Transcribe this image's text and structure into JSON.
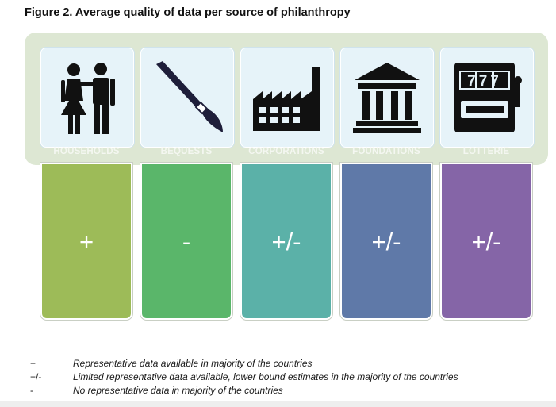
{
  "title": "Figure 2. Average quality of data per source of philanthropy",
  "colors": {
    "band": "#dde7d3",
    "card": "#e6f3f9",
    "households": "#9dbb58",
    "bequests": "#5ab66a",
    "corporations": "#5bb1a8",
    "foundations": "#5f79a8",
    "lotteries": "#8565a7"
  },
  "sources": [
    {
      "label": "HOUSEHOLDS",
      "symbol": "+",
      "icon": "couple-icon"
    },
    {
      "label": "BEQUESTS",
      "symbol": "-",
      "icon": "pen-icon"
    },
    {
      "label": "CORPORATIONS",
      "symbol": "+/-",
      "icon": "factory-icon"
    },
    {
      "label": "FOUNDATIONS",
      "symbol": "+/-",
      "icon": "bank-building-icon"
    },
    {
      "label": "LOTTERIE",
      "symbol": "+/-",
      "icon": "slot-machine-icon"
    }
  ],
  "slot_digits": "777",
  "legend": [
    {
      "symbol": "+",
      "text": "Representative data available in majority of the countries"
    },
    {
      "symbol": "+/-",
      "text": "Limited representative data available, lower bound estimates in the majority of the countries"
    },
    {
      "symbol": "-",
      "text": "No representative data in majority of the countries"
    }
  ]
}
